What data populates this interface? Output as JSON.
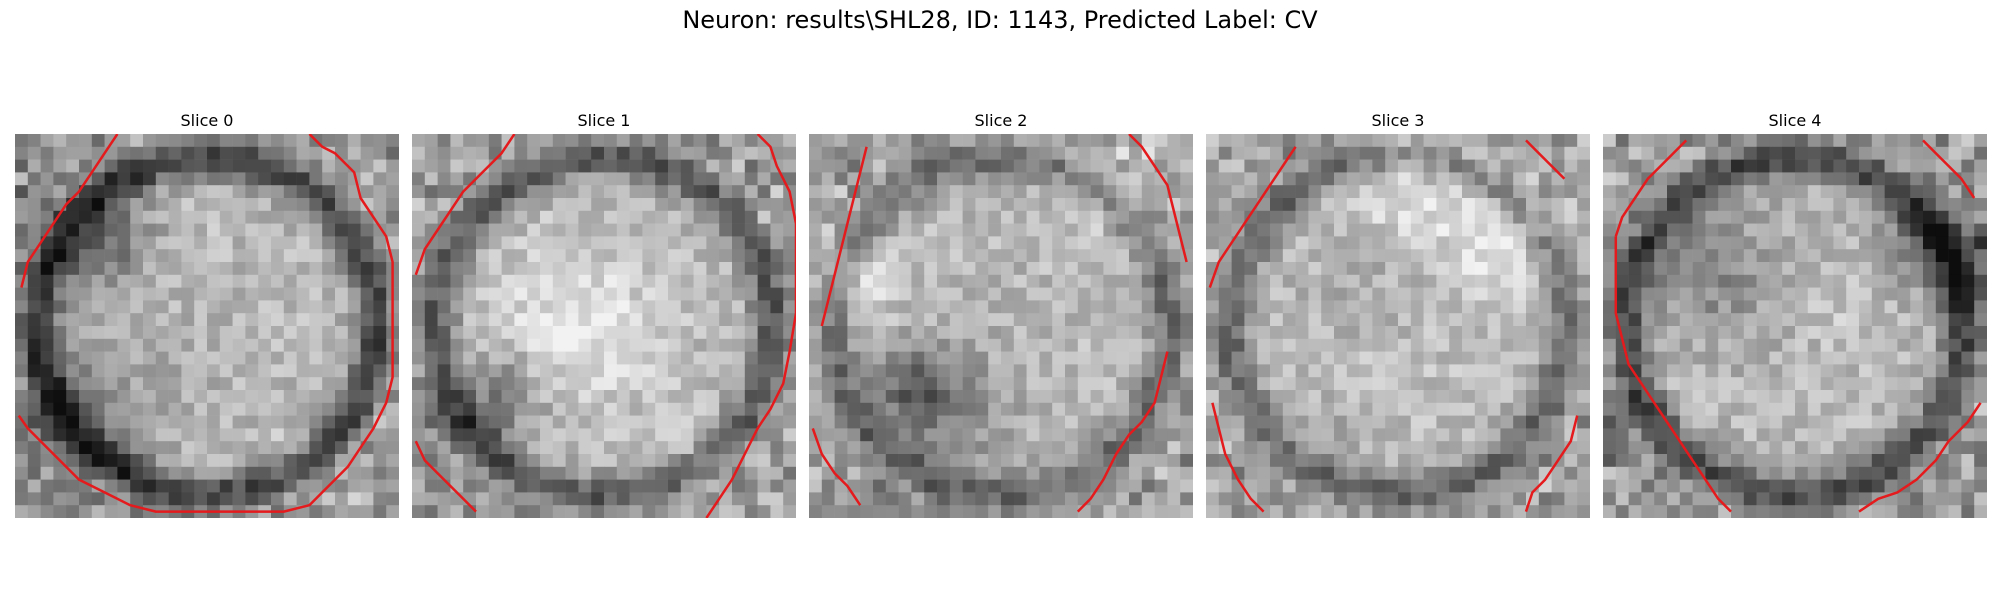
{
  "figure": {
    "title": "Neuron: results\\SHL28, ID: 1143, Predicted Label: CV"
  },
  "panels": [
    {
      "title": "Slice 0",
      "seed": 11,
      "dark_ring": 0.85,
      "contour_color": "#e41a1c"
    },
    {
      "title": "Slice 1",
      "seed": 23,
      "dark_ring": 0.7,
      "contour_color": "#e41a1c"
    },
    {
      "title": "Slice 2",
      "seed": 37,
      "dark_ring": 0.55,
      "contour_color": "#e41a1c"
    },
    {
      "title": "Slice 3",
      "seed": 51,
      "dark_ring": 0.6,
      "contour_color": "#e41a1c"
    },
    {
      "title": "Slice 4",
      "seed": 67,
      "dark_ring": 0.8,
      "contour_color": "#e41a1c"
    }
  ],
  "image": {
    "grid_size": 30,
    "colormap": "grayscale"
  }
}
